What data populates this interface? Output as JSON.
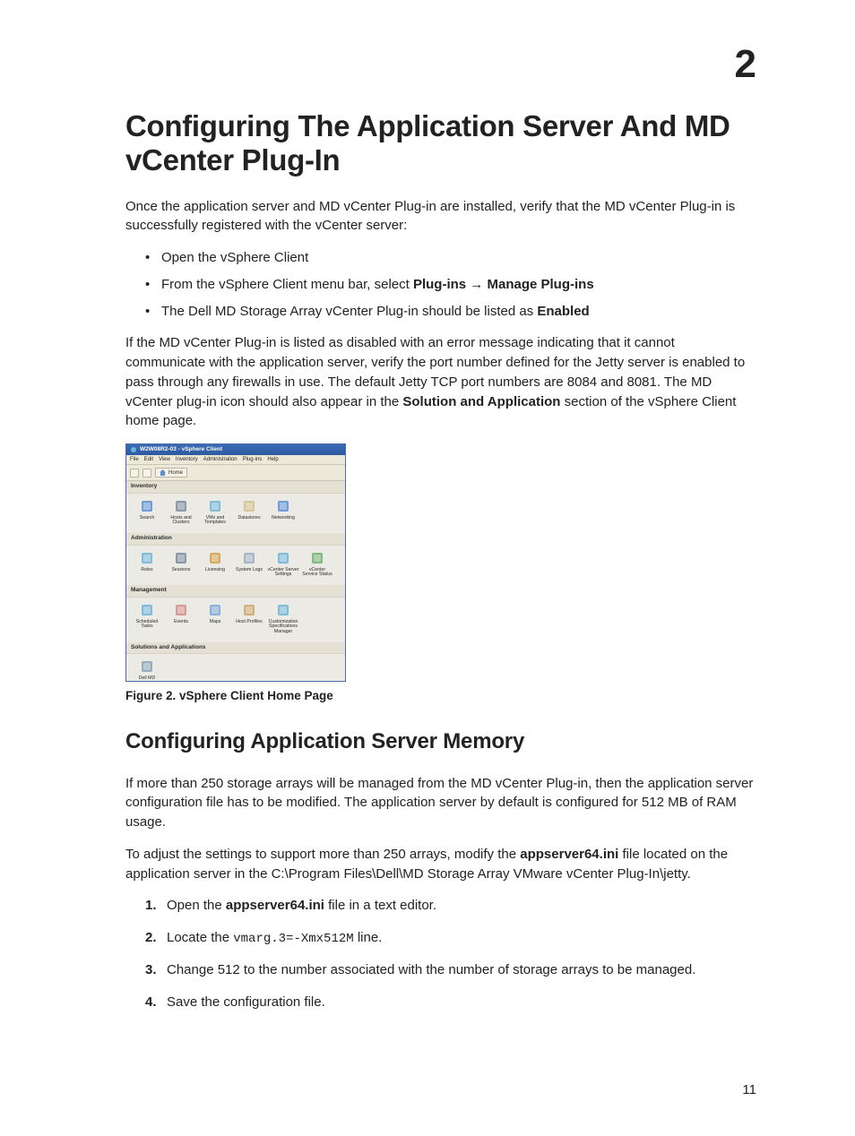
{
  "chapter": "2",
  "heading": "Configuring The Application Server And MD vCenter Plug-In",
  "intro": "Once the application server and MD vCenter Plug-in are installed, verify that the MD vCenter Plug-in is successfully registered with the vCenter server:",
  "bullets": {
    "b1": "Open the vSphere Client",
    "b2_pre": "From the vSphere Client menu bar, select ",
    "b2_bold1": "Plug-ins",
    "b2_arrow": " → ",
    "b2_bold2": "Manage Plug-ins",
    "b3_pre": "The Dell MD Storage Array vCenter Plug-in should be listed as ",
    "b3_bold": "Enabled"
  },
  "para2_pre": "If the MD vCenter Plug-in is listed as disabled with an error message indicating that it cannot communicate with the application server, verify the port number defined for the Jetty server is enabled to pass through any firewalls in use. The default Jetty TCP port numbers are 8084 and 8081. The MD vCenter plug-in icon should also appear in the ",
  "para2_bold": "Solution and Application",
  "para2_post": " section of the vSphere Client home page.",
  "figure": {
    "caption": "Figure 2. vSphere Client Home Page",
    "window_title": "W2W08R2-03 - vSphere Client",
    "menu": [
      "File",
      "Edit",
      "View",
      "Inventory",
      "Administration",
      "Plug-ins",
      "Help"
    ],
    "home_label": "Home",
    "sections": {
      "inventory": {
        "title": "Inventory",
        "items": [
          {
            "label": "Search",
            "color": "#5a8ed0"
          },
          {
            "label": "Hosts and Clusters",
            "color": "#7a8a9a"
          },
          {
            "label": "VMs and Templates",
            "color": "#6fb3d6"
          },
          {
            "label": "Datastores",
            "color": "#d0c088"
          },
          {
            "label": "Networking",
            "color": "#5a8ed0"
          }
        ]
      },
      "administration": {
        "title": "Administration",
        "items": [
          {
            "label": "Roles",
            "color": "#6fb3d6"
          },
          {
            "label": "Sessions",
            "color": "#7a8a9a"
          },
          {
            "label": "Licensing",
            "color": "#d0a048"
          },
          {
            "label": "System Logs",
            "color": "#9aaabf"
          },
          {
            "label": "vCenter Server Settings",
            "color": "#6fb3d6"
          },
          {
            "label": "vCenter Service Status",
            "color": "#6fb070"
          }
        ]
      },
      "management": {
        "title": "Management",
        "items": [
          {
            "label": "Scheduled Tasks",
            "color": "#6fb3d6"
          },
          {
            "label": "Events",
            "color": "#d08a8a"
          },
          {
            "label": "Maps",
            "color": "#7aa7d6"
          },
          {
            "label": "Host Profiles",
            "color": "#c9a66a"
          },
          {
            "label": "Customization Specifications Manager",
            "color": "#6fb3d6"
          }
        ]
      },
      "solutions": {
        "title": "Solutions and Applications",
        "items": [
          {
            "label": "Dell MD Storage Array vCenter Plug-in",
            "color": "#88a2b8"
          }
        ]
      }
    }
  },
  "subheading": "Configuring Application Server Memory",
  "para3": "If more than 250 storage arrays will be managed from the MD vCenter Plug-in, then the application server configuration file has to be modified. The application server by default is configured for 512 MB of RAM usage.",
  "para4_pre": "To adjust the settings to support more than 250 arrays, modify the ",
  "para4_bold1": "appserver64.ini",
  "para4_mid": " file located on the application server in the ",
  "para4_path": "C:\\Program Files\\Dell\\MD Storage Array VMware vCenter Plug-In\\jetty",
  "para4_post": ".",
  "steps": {
    "s1_pre": "Open the ",
    "s1_bold": "appserver64.ini",
    "s1_post": " file in a text editor.",
    "s2_pre": "Locate the ",
    "s2_code": "vmarg.3=-Xmx512M",
    "s2_post": " line.",
    "s3": "Change 512 to the number associated with the number of storage arrays to be managed.",
    "s4": "Save the configuration file."
  },
  "page_number": "11"
}
